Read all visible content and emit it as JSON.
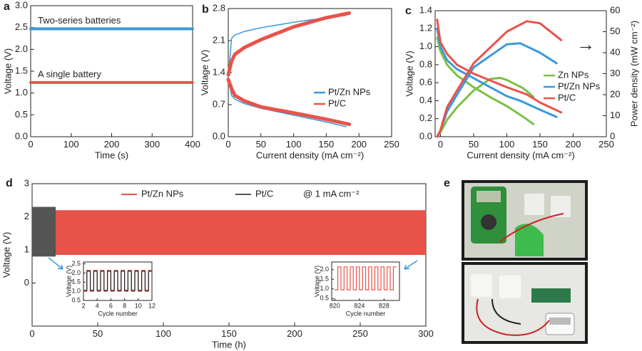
{
  "chart_data": [
    {
      "type": "line",
      "panel_label": "a",
      "xlabel": "Time (s)",
      "ylabel": "Voltage (V)",
      "xlim": [
        0,
        400
      ],
      "xticks": [
        0,
        100,
        200,
        300,
        400
      ],
      "ylim": [
        0,
        3
      ],
      "yticks": [
        {
          "value": 0,
          "label": "0.0"
        },
        0.5,
        {
          "value": 1,
          "label": "1.0"
        },
        1.5,
        {
          "value": 2,
          "label": "2.0"
        },
        2.5,
        {
          "value": 3,
          "label": "3.0"
        }
      ],
      "series": [
        {
          "name": "Two-series batteries",
          "color": "#3a9ad9",
          "x": [
            0,
            400
          ],
          "values": [
            2.47,
            2.47
          ]
        },
        {
          "name": "A single battery",
          "color": "#e8534a",
          "x": [
            0,
            400
          ],
          "values": [
            1.24,
            1.24
          ]
        }
      ]
    },
    {
      "type": "polarization",
      "panel_label": "b",
      "xlabel": "Current density (mA cm⁻²)",
      "ylabel": "Voltage (V)",
      "xlim": [
        0,
        250
      ],
      "xticks": [
        0,
        50,
        100,
        150,
        200,
        250
      ],
      "ylim": [
        0,
        2.8
      ],
      "yticks": [
        {
          "value": 0,
          "label": "0.0"
        },
        0.7,
        1.4,
        2.1,
        2.8
      ],
      "legend": "right",
      "series": [
        {
          "name": "Pt/Zn NPs",
          "color": "#3a9ad9",
          "x": [
            0,
            5,
            10,
            25,
            50,
            100,
            150,
            180
          ],
          "charge": [
            1.3,
            2.15,
            2.22,
            2.3,
            2.38,
            2.5,
            2.6,
            2.65
          ],
          "discharge": [
            1.3,
            0.9,
            0.82,
            0.72,
            0.62,
            0.47,
            0.32,
            0.22
          ]
        },
        {
          "name": "Pt/C",
          "color": "#e8534a",
          "x": [
            0,
            5,
            10,
            25,
            50,
            100,
            150,
            185
          ],
          "charge": [
            1.35,
            1.65,
            1.8,
            1.95,
            2.12,
            2.4,
            2.6,
            2.7
          ],
          "discharge": [
            1.25,
            1.05,
            0.9,
            0.78,
            0.65,
            0.52,
            0.38,
            0.27
          ]
        }
      ]
    },
    {
      "type": "dual-axis-line",
      "panel_label": "c",
      "xlabel": "Current density (mA cm⁻²)",
      "ylabel": "Voltage (V)",
      "y2label": "Power density (mW cm⁻²)",
      "annotation": "→",
      "xlim": [
        -8,
        250
      ],
      "xticks": [
        0,
        50,
        100,
        150,
        200,
        250
      ],
      "ylim": [
        0,
        1.4
      ],
      "yticks": [
        {
          "value": 0,
          "label": "0.0"
        },
        0.2,
        0.4,
        0.6,
        0.8,
        {
          "value": 1,
          "label": "1.0"
        },
        1.2,
        1.4
      ],
      "y2lim": [
        0,
        60
      ],
      "y2ticks": [
        0,
        10,
        20,
        30,
        40,
        50,
        60
      ],
      "legend": "right",
      "series": [
        {
          "name": "Zn NPs",
          "color": "#7ac143",
          "x": [
            -5,
            0,
            10,
            25,
            50,
            75,
            90,
            100,
            125,
            140
          ],
          "voltage": [
            1.1,
            0.95,
            0.8,
            0.68,
            0.55,
            0.44,
            0.38,
            0.34,
            0.22,
            0.14
          ],
          "power": [
            0,
            2,
            8,
            14,
            22,
            27.5,
            28,
            27,
            23,
            19
          ]
        },
        {
          "name": "Pt/Zn NPs",
          "color": "#3a9ad9",
          "x": [
            -5,
            0,
            10,
            25,
            50,
            100,
            120,
            150,
            175
          ],
          "voltage": [
            1.2,
            1.0,
            0.85,
            0.75,
            0.65,
            0.45,
            0.4,
            0.3,
            0.22
          ],
          "power": [
            0,
            3,
            12,
            20,
            33,
            44,
            44.5,
            40,
            35
          ]
        },
        {
          "name": "Pt/C",
          "color": "#e8534a",
          "x": [
            -5,
            0,
            10,
            25,
            50,
            100,
            130,
            150,
            182
          ],
          "voltage": [
            1.3,
            1.05,
            0.92,
            0.8,
            0.7,
            0.55,
            0.47,
            0.38,
            0.27
          ],
          "power": [
            0,
            3,
            14,
            22,
            35,
            50,
            55,
            54,
            46
          ]
        }
      ]
    },
    {
      "type": "cycling",
      "panel_label": "d",
      "xlabel": "Time (h)",
      "ylabel": "Voltage (V)",
      "annotation": "@ 1 mA cm⁻²",
      "xlim": [
        0,
        300
      ],
      "xticks": [
        0,
        50,
        100,
        150,
        200,
        250,
        300
      ],
      "ylim": [
        -1.3,
        3
      ],
      "yticks": [
        0,
        1,
        2,
        3
      ],
      "series": [
        {
          "name": "Pt/Zn NPs",
          "color": "#e8534a",
          "x": [
            0,
            300
          ],
          "low": [
            0.85,
            0.85
          ],
          "high": [
            2.2,
            2.2
          ]
        },
        {
          "name": "Pt/C",
          "color": "#555555",
          "x": [
            0,
            18
          ],
          "low": [
            0.8,
            0.8
          ],
          "high": [
            2.3,
            2.3
          ]
        }
      ],
      "insets": [
        {
          "xlabel": "Cycle number",
          "ylabel": "Voltage (V)",
          "xlim": [
            2,
            12
          ],
          "xticks": [
            2,
            4,
            6,
            8,
            10,
            12
          ],
          "ylim": [
            0.5,
            2.6
          ],
          "yticks": [
            0.5,
            {
              "value": 1,
              "label": "1.0"
            },
            1.5,
            {
              "value": 2,
              "label": "2.0"
            },
            2.5
          ],
          "x": [
            2,
            2.5,
            2.5,
            3,
            3,
            3.5,
            3.5,
            4,
            4,
            4.5,
            4.5,
            5,
            5,
            5.5,
            5.5,
            6,
            6,
            6.5,
            6.5,
            7,
            7,
            7.5,
            7.5,
            8,
            8,
            8.5,
            8.5,
            9,
            9,
            9.5,
            9.5,
            10,
            10,
            10.5,
            10.5,
            11,
            11,
            11.5,
            11.5,
            12
          ],
          "series": [
            {
              "color": "#e8534a",
              "values": [
                1.0,
                1.0,
                2.15,
                2.15,
                1.0,
                1.0,
                2.15,
                2.15,
                1.0,
                1.0,
                2.15,
                2.15,
                1.0,
                1.0,
                2.15,
                2.15,
                1.0,
                1.0,
                2.15,
                2.15,
                1.0,
                1.0,
                2.15,
                2.15,
                1.0,
                1.0,
                2.15,
                2.15,
                1.0,
                1.0,
                2.15,
                2.15,
                1.0,
                1.0,
                2.15,
                2.15,
                1.0,
                1.0,
                2.15,
                2.15
              ]
            },
            {
              "color": "#222222",
              "values": [
                1.05,
                1.05,
                2.1,
                2.1,
                1.05,
                1.05,
                2.1,
                2.1,
                1.05,
                1.05,
                2.1,
                2.1,
                1.05,
                1.05,
                2.1,
                2.1,
                1.05,
                1.05,
                2.1,
                2.1,
                1.05,
                1.05,
                2.1,
                2.1,
                1.05,
                1.05,
                2.1,
                2.1,
                1.05,
                1.05,
                2.1,
                2.1,
                1.05,
                1.05,
                2.1,
                2.1,
                1.05,
                1.05,
                2.1,
                2.1
              ]
            }
          ]
        },
        {
          "xlabel": "Cycle number",
          "ylabel": "Voltage (V)",
          "xlim": [
            819.5,
            830.5
          ],
          "xticks": [
            820,
            824,
            828
          ],
          "ylim": [
            0.4,
            2.4
          ],
          "yticks": [
            0.5,
            {
              "value": 1,
              "label": "1.0"
            },
            1.5,
            {
              "value": 2,
              "label": "2.0"
            }
          ],
          "x": [
            820,
            820.5,
            820.5,
            821,
            821,
            821.5,
            821.5,
            822,
            822,
            822.5,
            822.5,
            823,
            823,
            823.5,
            823.5,
            824,
            824,
            824.5,
            824.5,
            825,
            825,
            825.5,
            825.5,
            826,
            826,
            826.5,
            826.5,
            827,
            827,
            827.5,
            827.5,
            828,
            828,
            828.5,
            828.5,
            829,
            829,
            829.5,
            829.5,
            830
          ],
          "series": [
            {
              "color": "#e8534a",
              "values": [
                0.95,
                0.95,
                2.15,
                2.15,
                0.95,
                0.95,
                2.15,
                2.15,
                0.95,
                0.95,
                2.15,
                2.15,
                0.95,
                0.95,
                2.15,
                2.15,
                0.95,
                0.95,
                2.15,
                2.15,
                0.95,
                0.95,
                2.15,
                2.15,
                0.95,
                0.95,
                2.15,
                2.15,
                0.95,
                0.95,
                2.15,
                2.15,
                0.95,
                0.95,
                2.15,
                2.15,
                0.95,
                0.95,
                2.15,
                2.15
              ]
            }
          ]
        }
      ]
    }
  ],
  "photo": {
    "label": "e"
  }
}
